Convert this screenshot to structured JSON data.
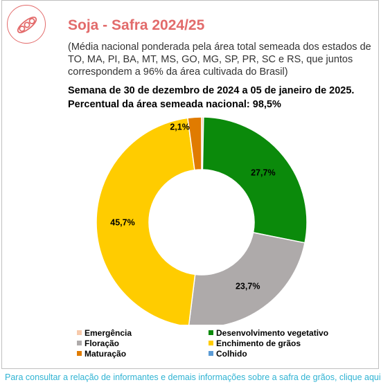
{
  "header": {
    "title": "Soja - Safra 2024/25",
    "subtitle": "(Média nacional ponderada pela área total semeada dos estados de TO, MA, PI, BA, MT, MS, GO, MG, SP, PR, SC e RS, que juntos correspondem a 96% da área cultivada do Brasil)",
    "week": "Semana de 30 de dezembro de 2024 a 05 de janeiro de 2025.",
    "planted_percent": "Percentual da área semeada nacional: 98,5%"
  },
  "logo": {
    "icon": "soybean-pod-icon",
    "color": "#e36b6b"
  },
  "chart_data": {
    "type": "pie",
    "donut": true,
    "categories": [
      "Emergência",
      "Desenvolvimento vegetativo",
      "Floração",
      "Enchimento de grãos",
      "Maturação",
      "Colhido"
    ],
    "values": [
      0.3,
      27.7,
      23.7,
      45.7,
      2.1,
      0.0
    ],
    "value_labels": [
      "",
      "27,7%",
      "23,7%",
      "45,7%",
      "2,1%",
      ""
    ],
    "colors": [
      "#f7caac",
      "#0b8a0b",
      "#aeaaaa",
      "#ffcc00",
      "#e07b00",
      "#5b9bd5"
    ],
    "legend_position": "bottom"
  },
  "footer": {
    "link_text": "Para consultar a relação de informantes e demais informações sobre a safra de grãos, clique aqui"
  }
}
